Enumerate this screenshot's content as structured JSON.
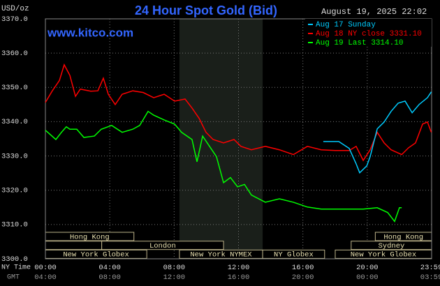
{
  "chart_data": {
    "type": "line",
    "title": "24 Hour Spot Gold (Bid)",
    "y_label": "USD/oz",
    "timestamp": "August 19, 2025 22:02",
    "watermark": "www.kitco.com",
    "x_row_label": "NY Time",
    "x2_row_label": "GMT",
    "xlim": [
      0,
      24
    ],
    "ylim": [
      3300,
      3370
    ],
    "grid": true,
    "legend": "top-right",
    "xticks": [
      {
        "value": 0,
        "label": "00:00"
      },
      {
        "value": 4,
        "label": "04:00"
      },
      {
        "value": 8,
        "label": "08:00"
      },
      {
        "value": 12,
        "label": "12:00"
      },
      {
        "value": 16,
        "label": "16:00"
      },
      {
        "value": 20,
        "label": "20:00"
      },
      {
        "value": 23.98,
        "label": "23:59"
      }
    ],
    "x2ticks": [
      {
        "value": 0,
        "label": "04:00"
      },
      {
        "value": 4,
        "label": "08:00"
      },
      {
        "value": 8,
        "label": "12:00"
      },
      {
        "value": 12,
        "label": "16:00"
      },
      {
        "value": 16,
        "label": "20:00"
      },
      {
        "value": 20,
        "label": "00:00"
      },
      {
        "value": 23.98,
        "label": "03:59"
      }
    ],
    "yticks": [
      {
        "value": 3300,
        "label": "3300.0"
      },
      {
        "value": 3310,
        "label": "3310.0"
      },
      {
        "value": 3320,
        "label": "3320.0"
      },
      {
        "value": 3330,
        "label": "3330.0"
      },
      {
        "value": 3340,
        "label": "3340.0"
      },
      {
        "value": 3350,
        "label": "3350.0"
      },
      {
        "value": 3360,
        "label": "3360.0"
      },
      {
        "value": 3370,
        "label": "3370.0"
      }
    ],
    "shade_x": [
      8.33,
      13.5
    ],
    "series": [
      {
        "name": "Aug 17 Sunday",
        "color": "#00ccff",
        "x": [
          17.27,
          18.23,
          18.88,
          19.31,
          19.53,
          19.97,
          20.18,
          20.62,
          21.05,
          21.48,
          21.92,
          22.35,
          22.79,
          23.22,
          23.74,
          23.98
        ],
        "values": [
          3334.2,
          3334.2,
          3332.2,
          3327.7,
          3325.1,
          3327.1,
          3329.8,
          3337.9,
          3339.9,
          3343,
          3345.4,
          3346,
          3342.6,
          3345,
          3347,
          3348.7
        ]
      },
      {
        "name": "Aug 18 NY close 3331.10",
        "color": "#ff0000",
        "x": [
          0,
          0.43,
          0.87,
          1.17,
          1.52,
          1.87,
          2.17,
          2.82,
          3.26,
          3.6,
          3.91,
          4.34,
          4.77,
          5.43,
          6.08,
          6.73,
          7.38,
          8.03,
          8.68,
          9.11,
          9.55,
          9.98,
          10.42,
          11.07,
          11.72,
          12.15,
          12.8,
          13.67,
          14.54,
          15.41,
          16.28,
          17.14,
          18.01,
          18.88,
          19.31,
          19.75,
          20.18,
          20.62,
          21.05,
          21.48,
          22.14,
          22.57,
          23.0,
          23.44,
          23.74,
          23.98
        ],
        "values": [
          3345.6,
          3349,
          3352,
          3356.6,
          3353.5,
          3347.4,
          3349.5,
          3348.9,
          3349,
          3352.7,
          3348,
          3345,
          3348,
          3349,
          3348.5,
          3347,
          3348,
          3346,
          3346.6,
          3344,
          3341,
          3336.9,
          3334.8,
          3333.8,
          3334.8,
          3332.8,
          3331.8,
          3332.8,
          3331.8,
          3330.4,
          3332.8,
          3331.8,
          3331.6,
          3331.6,
          3332.8,
          3328.7,
          3331.8,
          3336.9,
          3333.8,
          3331.8,
          3330.4,
          3332.4,
          3333.8,
          3339.3,
          3339.9,
          3336.9
        ]
      },
      {
        "name": "Aug 19 Last 3314.10",
        "color": "#00ff00",
        "x": [
          0,
          0.65,
          1.0,
          1.3,
          1.52,
          1.95,
          2.39,
          3.04,
          3.47,
          4.12,
          4.77,
          5.43,
          5.86,
          6.38,
          6.73,
          7.38,
          8.03,
          8.46,
          9.11,
          9.42,
          9.77,
          10.2,
          10.63,
          11.07,
          11.5,
          11.94,
          12.37,
          12.8,
          13.67,
          14.54,
          15.41,
          16.28,
          17.14,
          18.01,
          18.88,
          19.75,
          20.62,
          21.27,
          21.7,
          22.0,
          22.14
        ],
        "values": [
          3337.5,
          3334.8,
          3336.9,
          3338.5,
          3337.8,
          3337.8,
          3335.4,
          3335.8,
          3337.8,
          3338.9,
          3336.9,
          3337.8,
          3338.9,
          3343,
          3341.9,
          3340.5,
          3339.3,
          3336.9,
          3334.8,
          3328.3,
          3335.8,
          3332.8,
          3329.8,
          3322.2,
          3323.7,
          3321,
          3321.7,
          3318.6,
          3316.5,
          3317.5,
          3316.5,
          3315.1,
          3314.5,
          3314.5,
          3314.5,
          3314.5,
          3314.9,
          3313.5,
          3310.9,
          3314.9,
          3314.9
        ]
      }
    ],
    "session_rows": [
      [
        {
          "label": "Hong Kong",
          "start": 0,
          "end": 5.5
        },
        {
          "label": "Hong Kong",
          "start": 20.5,
          "end": 24
        }
      ],
      [
        {
          "label": null,
          "start": 0,
          "end": 3.5
        },
        {
          "label": "London",
          "start": 3.5,
          "end": 11.07
        },
        {
          "label": "Sydney",
          "start": 19,
          "end": 24
        }
      ],
      [
        {
          "label": "New York Globex",
          "start": 0,
          "end": 6.3
        },
        {
          "label": "New York NYMEX",
          "start": 8.33,
          "end": 13.5
        },
        {
          "label": "NY Globex",
          "start": 13.5,
          "end": 17.35
        },
        {
          "label": "New York Globex",
          "start": 18.01,
          "end": 24
        }
      ]
    ]
  }
}
